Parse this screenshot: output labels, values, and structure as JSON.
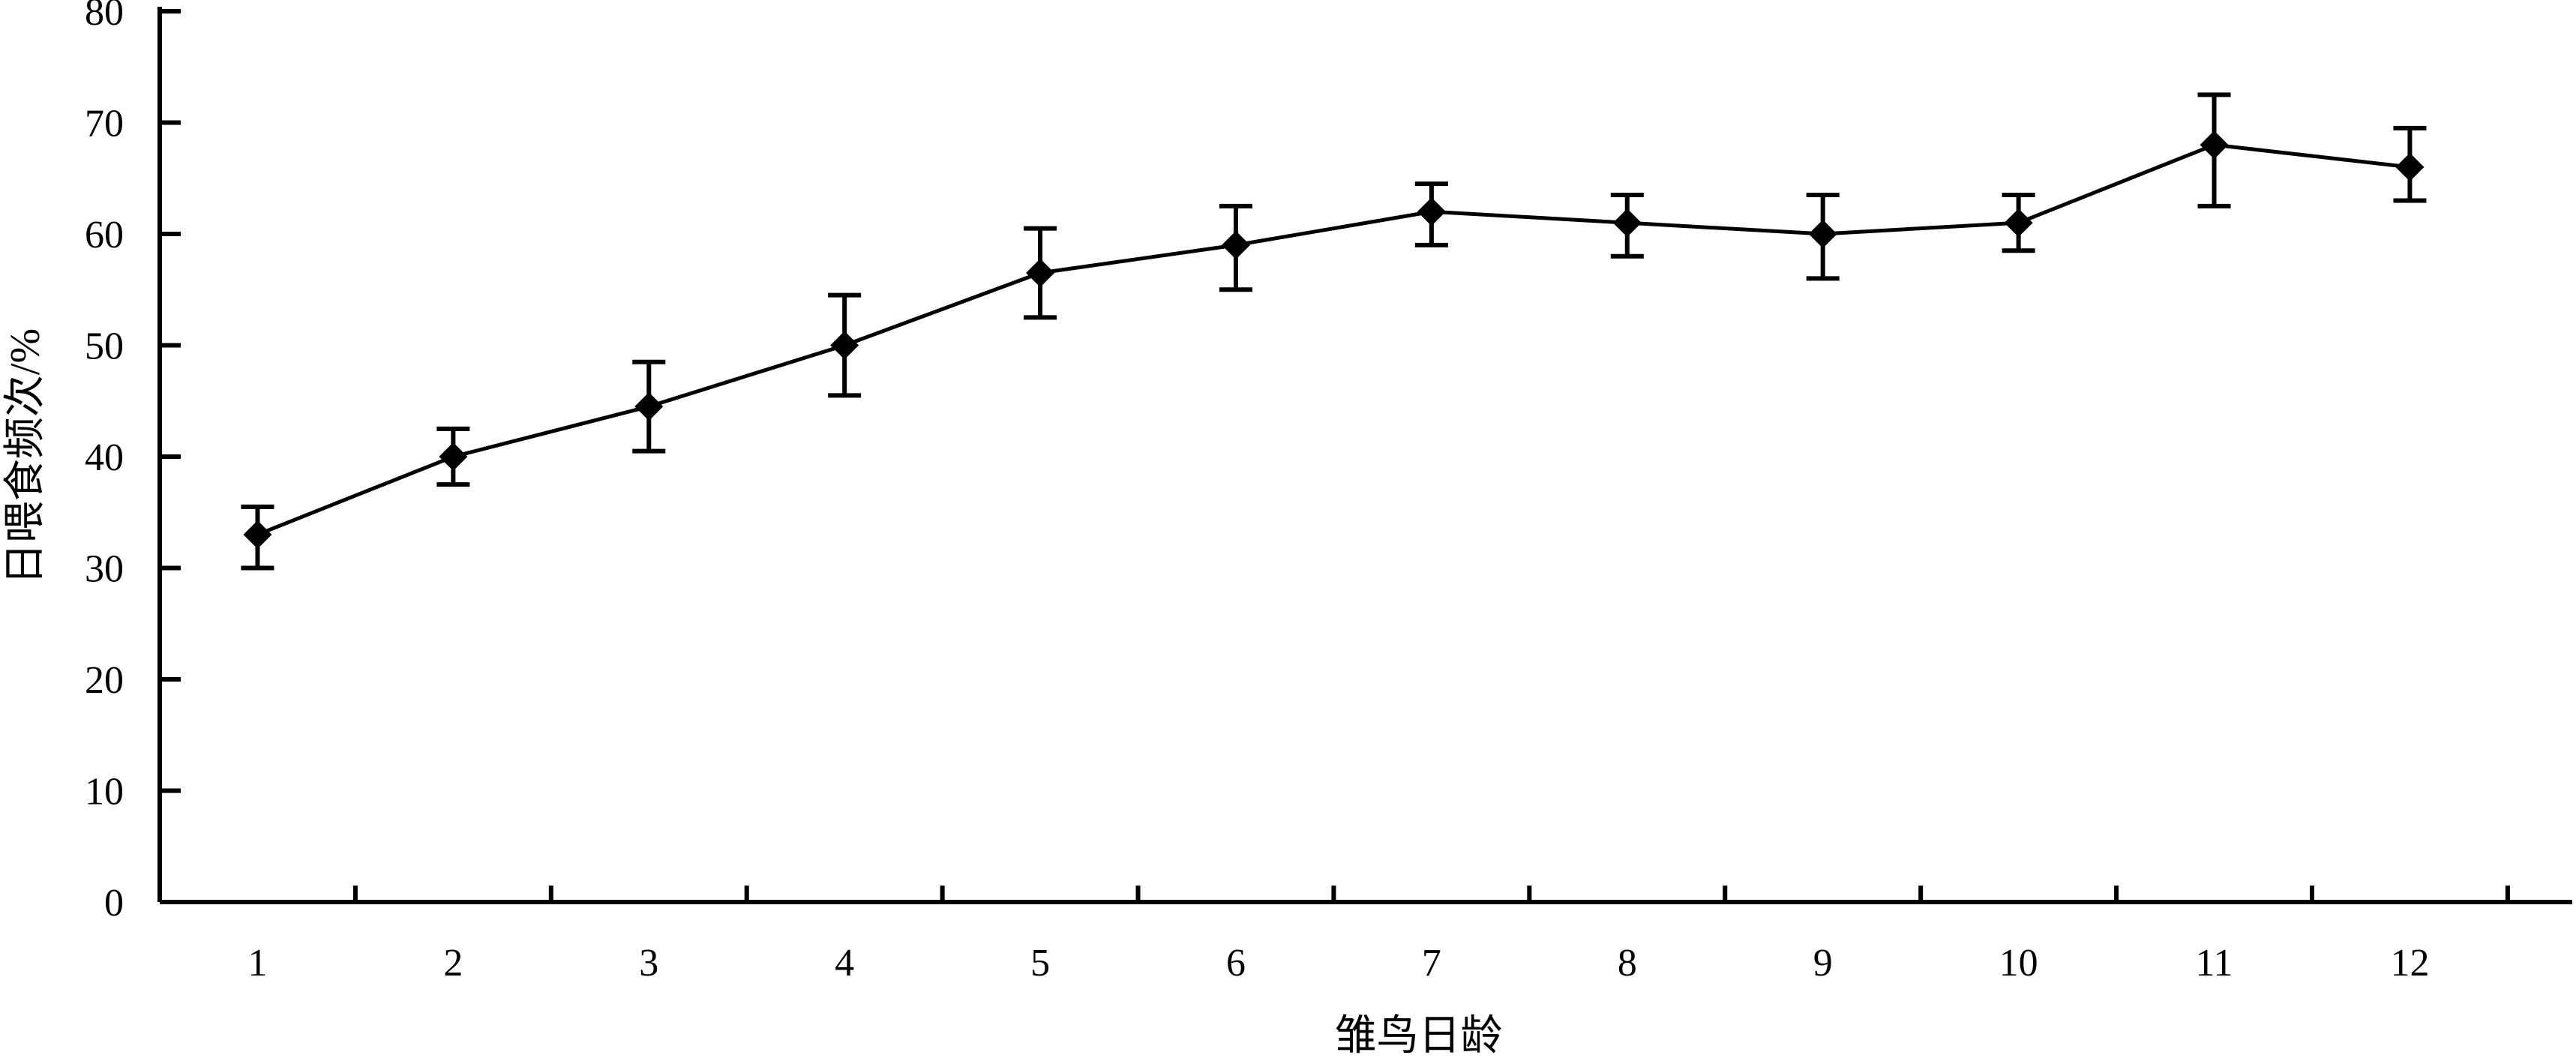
{
  "chart_data": {
    "type": "line",
    "title": "",
    "xlabel": "雏鸟日龄",
    "ylabel": "日喂食频次/%",
    "categories": [
      "1",
      "2",
      "3",
      "4",
      "5",
      "6",
      "7",
      "8",
      "9",
      "10",
      "11",
      "12"
    ],
    "series": [
      {
        "values": [
          33,
          40,
          44.5,
          50,
          56.5,
          59,
          62,
          61,
          60,
          61,
          68,
          66
        ],
        "error_low": [
          30,
          37.5,
          40.5,
          45.5,
          52.5,
          55,
          59,
          58,
          56,
          58.5,
          62.5,
          63
        ],
        "error_high": [
          35.5,
          42.5,
          48.5,
          54.5,
          60.5,
          62.5,
          64.5,
          63.5,
          63.5,
          63.5,
          72.5,
          69.5
        ],
        "color": "#000000",
        "marker": "diamond"
      }
    ],
    "ylim": [
      0,
      80
    ],
    "yticks": [
      "0",
      "10",
      "20",
      "30",
      "40",
      "50",
      "60",
      "70",
      "80"
    ],
    "grid": false,
    "legend": "none"
  }
}
